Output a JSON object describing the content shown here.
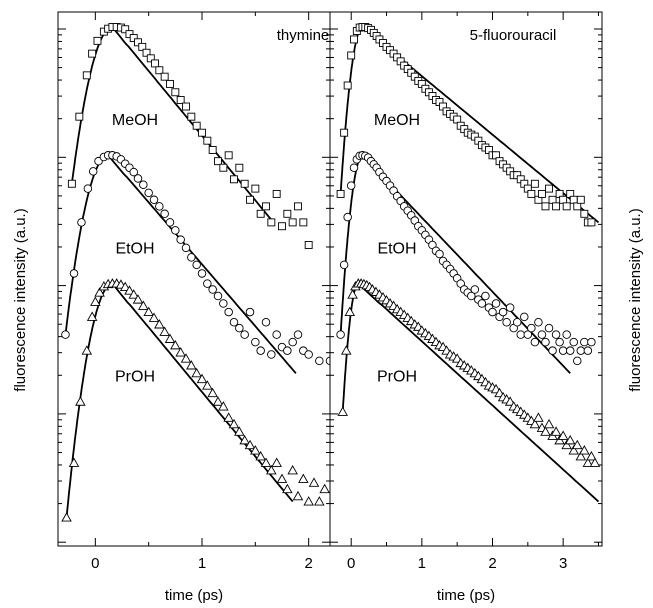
{
  "figure": {
    "ylabel_left": "fluorescence intensity (a.u.)",
    "ylabel_right": "fluorescence intensity (a.u.)"
  },
  "chart_data": [
    {
      "type": "scatter",
      "title": "thymine",
      "xlabel": "time (ps)",
      "ylabel": "fluorescence intensity (a.u.)",
      "xlim": [
        -0.35,
        2.2
      ],
      "xticks": [
        0,
        1,
        2
      ],
      "yscale": "log",
      "series": [
        {
          "name": "MeOH",
          "marker": "square",
          "y_offset": 0,
          "fit_end": 1.67,
          "x": [
            -0.22,
            -0.15,
            -0.08,
            -0.03,
            0.02,
            0.08,
            0.12,
            0.16,
            0.2,
            0.24,
            0.28,
            0.32,
            0.36,
            0.4,
            0.44,
            0.48,
            0.52,
            0.56,
            0.6,
            0.65,
            0.7,
            0.75,
            0.8,
            0.85,
            0.9,
            0.95,
            1.0,
            1.05,
            1.1,
            1.15,
            1.2,
            1.25,
            1.3,
            1.35,
            1.4,
            1.45,
            1.5,
            1.55,
            1.6,
            1.65,
            1.7,
            1.75,
            1.8,
            1.85,
            1.9,
            1.95,
            2.0
          ],
          "y": [
            0.06,
            0.2,
            0.42,
            0.62,
            0.78,
            0.92,
            0.97,
            1.0,
            1.0,
            0.99,
            0.96,
            0.88,
            0.82,
            0.76,
            0.7,
            0.63,
            0.57,
            0.52,
            0.46,
            0.41,
            0.36,
            0.31,
            0.27,
            0.24,
            0.2,
            0.17,
            0.15,
            0.13,
            0.11,
            0.09,
            0.08,
            0.1,
            0.065,
            0.08,
            0.06,
            0.045,
            0.055,
            0.035,
            0.04,
            0.03,
            0.05,
            0.028,
            0.035,
            0.03,
            0.04,
            0.03,
            0.02
          ]
        },
        {
          "name": "EtOH",
          "marker": "circle",
          "y_offset": -1,
          "fit_end": 1.88,
          "x": [
            -0.28,
            -0.2,
            -0.13,
            -0.07,
            -0.02,
            0.03,
            0.08,
            0.12,
            0.16,
            0.2,
            0.24,
            0.28,
            0.32,
            0.36,
            0.4,
            0.45,
            0.5,
            0.55,
            0.6,
            0.65,
            0.7,
            0.75,
            0.8,
            0.85,
            0.9,
            0.95,
            1.0,
            1.05,
            1.1,
            1.15,
            1.2,
            1.25,
            1.3,
            1.35,
            1.4,
            1.45,
            1.5,
            1.55,
            1.6,
            1.65,
            1.7,
            1.75,
            1.8,
            1.85,
            1.9,
            1.95,
            2.0,
            2.1,
            2.2
          ],
          "y": [
            0.04,
            0.12,
            0.3,
            0.55,
            0.75,
            0.9,
            0.97,
            1.0,
            1.0,
            0.98,
            0.93,
            0.86,
            0.8,
            0.74,
            0.66,
            0.59,
            0.51,
            0.45,
            0.4,
            0.35,
            0.3,
            0.26,
            0.22,
            0.19,
            0.16,
            0.14,
            0.12,
            0.1,
            0.09,
            0.08,
            0.07,
            0.06,
            0.05,
            0.045,
            0.04,
            0.06,
            0.035,
            0.03,
            0.05,
            0.028,
            0.04,
            0.032,
            0.03,
            0.035,
            0.04,
            0.03,
            0.028,
            0.025,
            0.025
          ]
        },
        {
          "name": "PrOH",
          "marker": "triangle",
          "y_offset": -2,
          "fit_end": 1.85,
          "x": [
            -0.27,
            -0.2,
            -0.14,
            -0.08,
            -0.03,
            0.0,
            0.04,
            0.08,
            0.12,
            0.16,
            0.2,
            0.24,
            0.28,
            0.32,
            0.36,
            0.4,
            0.45,
            0.5,
            0.55,
            0.6,
            0.65,
            0.7,
            0.75,
            0.8,
            0.85,
            0.9,
            0.95,
            1.0,
            1.05,
            1.1,
            1.15,
            1.2,
            1.25,
            1.3,
            1.35,
            1.4,
            1.45,
            1.5,
            1.55,
            1.6,
            1.65,
            1.7,
            1.75,
            1.8,
            1.85,
            1.9,
            1.95,
            2.0,
            2.05,
            2.1,
            2.15
          ],
          "y": [
            0.015,
            0.04,
            0.12,
            0.3,
            0.55,
            0.72,
            0.85,
            0.95,
            0.99,
            1.0,
            1.0,
            0.98,
            0.94,
            0.88,
            0.82,
            0.75,
            0.67,
            0.6,
            0.54,
            0.48,
            0.42,
            0.37,
            0.33,
            0.29,
            0.26,
            0.23,
            0.2,
            0.18,
            0.16,
            0.14,
            0.12,
            0.11,
            0.09,
            0.08,
            0.07,
            0.06,
            0.055,
            0.05,
            0.045,
            0.04,
            0.035,
            0.04,
            0.03,
            0.025,
            0.035,
            0.022,
            0.03,
            0.02,
            0.028,
            0.02,
            0.025
          ]
        }
      ]
    },
    {
      "type": "scatter",
      "title": "5-fluorouracil",
      "xlabel": "time (ps)",
      "ylabel": "fluorescence intensity (a.u.)",
      "xlim": [
        -0.3,
        3.55
      ],
      "xticks": [
        0,
        1,
        2,
        3
      ],
      "yscale": "log",
      "series": [
        {
          "name": "MeOH",
          "marker": "square",
          "y_offset": 0,
          "fit_end": 3.5,
          "x": [
            -0.15,
            -0.1,
            -0.05,
            0.0,
            0.04,
            0.08,
            0.12,
            0.16,
            0.2,
            0.24,
            0.28,
            0.32,
            0.36,
            0.4,
            0.45,
            0.5,
            0.55,
            0.6,
            0.65,
            0.7,
            0.75,
            0.8,
            0.85,
            0.9,
            0.95,
            1.0,
            1.05,
            1.1,
            1.15,
            1.2,
            1.25,
            1.3,
            1.35,
            1.4,
            1.45,
            1.5,
            1.55,
            1.6,
            1.65,
            1.7,
            1.75,
            1.8,
            1.85,
            1.9,
            1.95,
            2.0,
            2.05,
            2.1,
            2.15,
            2.2,
            2.25,
            2.3,
            2.35,
            2.4,
            2.45,
            2.5,
            2.55,
            2.6,
            2.65,
            2.7,
            2.75,
            2.8,
            2.85,
            2.9,
            2.95,
            3.0,
            3.05,
            3.1,
            3.15,
            3.2,
            3.25,
            3.3,
            3.35,
            3.4
          ],
          "y": [
            0.05,
            0.15,
            0.35,
            0.6,
            0.8,
            0.93,
            0.99,
            1.0,
            1.0,
            0.98,
            0.95,
            0.9,
            0.85,
            0.8,
            0.75,
            0.7,
            0.66,
            0.62,
            0.58,
            0.54,
            0.5,
            0.47,
            0.44,
            0.41,
            0.38,
            0.36,
            0.33,
            0.31,
            0.29,
            0.27,
            0.26,
            0.24,
            0.22,
            0.21,
            0.2,
            0.19,
            0.17,
            0.16,
            0.15,
            0.145,
            0.14,
            0.13,
            0.12,
            0.115,
            0.11,
            0.1,
            0.1,
            0.09,
            0.085,
            0.08,
            0.075,
            0.07,
            0.07,
            0.065,
            0.06,
            0.055,
            0.05,
            0.06,
            0.045,
            0.05,
            0.04,
            0.055,
            0.045,
            0.04,
            0.05,
            0.045,
            0.04,
            0.05,
            0.045,
            0.04,
            0.045,
            0.035,
            0.03,
            0.03
          ]
        },
        {
          "name": "EtOH",
          "marker": "circle",
          "y_offset": -1,
          "fit_end": 3.1,
          "x": [
            -0.15,
            -0.1,
            -0.05,
            0.0,
            0.04,
            0.08,
            0.12,
            0.16,
            0.2,
            0.24,
            0.28,
            0.32,
            0.36,
            0.4,
            0.45,
            0.5,
            0.55,
            0.6,
            0.65,
            0.7,
            0.75,
            0.8,
            0.85,
            0.9,
            0.95,
            1.0,
            1.05,
            1.1,
            1.15,
            1.2,
            1.25,
            1.3,
            1.35,
            1.4,
            1.45,
            1.5,
            1.55,
            1.6,
            1.65,
            1.7,
            1.75,
            1.8,
            1.85,
            1.9,
            1.95,
            2.0,
            2.05,
            2.1,
            2.15,
            2.2,
            2.25,
            2.3,
            2.35,
            2.4,
            2.45,
            2.5,
            2.55,
            2.6,
            2.65,
            2.7,
            2.75,
            2.8,
            2.85,
            2.9,
            2.95,
            3.0,
            3.05,
            3.1,
            3.15,
            3.2,
            3.25,
            3.3,
            3.35,
            3.4
          ],
          "y": [
            0.04,
            0.14,
            0.33,
            0.58,
            0.8,
            0.93,
            0.99,
            1.0,
            0.99,
            0.96,
            0.9,
            0.85,
            0.8,
            0.74,
            0.68,
            0.63,
            0.58,
            0.53,
            0.48,
            0.44,
            0.4,
            0.37,
            0.34,
            0.31,
            0.28,
            0.26,
            0.24,
            0.22,
            0.2,
            0.18,
            0.17,
            0.15,
            0.14,
            0.13,
            0.12,
            0.11,
            0.1,
            0.09,
            0.085,
            0.08,
            0.09,
            0.075,
            0.07,
            0.08,
            0.065,
            0.06,
            0.07,
            0.055,
            0.06,
            0.05,
            0.065,
            0.045,
            0.05,
            0.04,
            0.055,
            0.04,
            0.045,
            0.035,
            0.05,
            0.04,
            0.035,
            0.045,
            0.03,
            0.04,
            0.035,
            0.03,
            0.04,
            0.03,
            0.035,
            0.025,
            0.03,
            0.035,
            0.03,
            0.035
          ]
        },
        {
          "name": "PrOH",
          "marker": "triangle",
          "y_offset": -2,
          "fit_end": 3.5,
          "x": [
            -0.12,
            -0.07,
            -0.02,
            0.02,
            0.06,
            0.1,
            0.14,
            0.18,
            0.22,
            0.26,
            0.3,
            0.35,
            0.4,
            0.45,
            0.5,
            0.55,
            0.6,
            0.65,
            0.7,
            0.75,
            0.8,
            0.85,
            0.9,
            0.95,
            1.0,
            1.05,
            1.1,
            1.15,
            1.2,
            1.25,
            1.3,
            1.35,
            1.4,
            1.45,
            1.5,
            1.55,
            1.6,
            1.65,
            1.7,
            1.75,
            1.8,
            1.85,
            1.9,
            1.95,
            2.0,
            2.05,
            2.1,
            2.15,
            2.2,
            2.25,
            2.3,
            2.35,
            2.4,
            2.45,
            2.5,
            2.55,
            2.6,
            2.65,
            2.7,
            2.75,
            2.8,
            2.85,
            2.9,
            2.95,
            3.0,
            3.05,
            3.1,
            3.15,
            3.2,
            3.25,
            3.3,
            3.35,
            3.4,
            3.45
          ],
          "y": [
            0.1,
            0.3,
            0.6,
            0.82,
            0.95,
            1.0,
            1.0,
            0.99,
            0.97,
            0.94,
            0.9,
            0.86,
            0.82,
            0.78,
            0.74,
            0.7,
            0.67,
            0.63,
            0.6,
            0.57,
            0.54,
            0.51,
            0.48,
            0.46,
            0.43,
            0.41,
            0.39,
            0.37,
            0.35,
            0.33,
            0.32,
            0.3,
            0.28,
            0.27,
            0.26,
            0.24,
            0.23,
            0.22,
            0.21,
            0.2,
            0.19,
            0.18,
            0.17,
            0.16,
            0.155,
            0.15,
            0.14,
            0.13,
            0.125,
            0.12,
            0.11,
            0.105,
            0.1,
            0.095,
            0.09,
            0.085,
            0.08,
            0.09,
            0.075,
            0.07,
            0.08,
            0.065,
            0.07,
            0.06,
            0.065,
            0.055,
            0.06,
            0.05,
            0.055,
            0.045,
            0.05,
            0.04,
            0.045,
            0.04
          ]
        }
      ]
    }
  ]
}
